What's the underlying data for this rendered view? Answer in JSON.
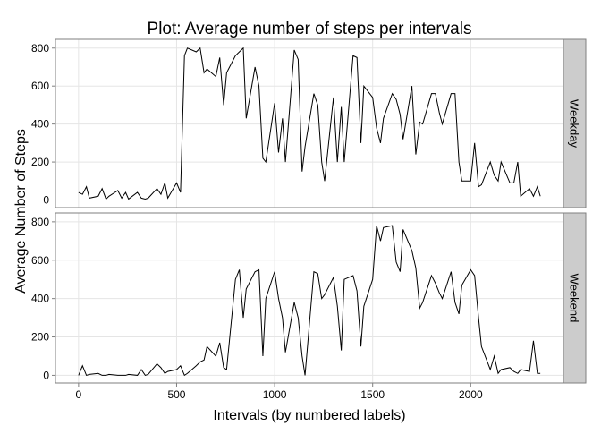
{
  "chart_data": {
    "type": "line",
    "title": "Plot: Average number of steps per intervals",
    "x_label": "Intervals (by numbered labels)",
    "y_label": "Average Number of Steps",
    "xlim": [
      -118,
      2473
    ],
    "xticks": [
      0,
      500,
      1000,
      1500,
      2000
    ],
    "ylim": [
      -40,
      846
    ],
    "yticks": [
      0,
      200,
      400,
      600,
      800
    ],
    "grid": true,
    "color": "#000000",
    "x": [
      0,
      20,
      40,
      55,
      100,
      120,
      140,
      155,
      200,
      220,
      240,
      255,
      300,
      320,
      340,
      355,
      400,
      420,
      440,
      455,
      500,
      520,
      540,
      555,
      600,
      620,
      640,
      655,
      700,
      720,
      740,
      755,
      800,
      820,
      840,
      855,
      900,
      920,
      940,
      955,
      1000,
      1020,
      1040,
      1055,
      1100,
      1120,
      1140,
      1155,
      1200,
      1220,
      1240,
      1255,
      1300,
      1320,
      1340,
      1355,
      1400,
      1420,
      1440,
      1455,
      1500,
      1520,
      1540,
      1555,
      1600,
      1620,
      1640,
      1655,
      1700,
      1720,
      1740,
      1755,
      1800,
      1820,
      1840,
      1855,
      1900,
      1920,
      1940,
      1955,
      2000,
      2020,
      2040,
      2055,
      2100,
      2120,
      2140,
      2155,
      2200,
      2220,
      2240,
      2255,
      2300,
      2320,
      2340,
      2355
    ],
    "panels": [
      {
        "name": "Weekday",
        "values": [
          40,
          30,
          70,
          10,
          20,
          60,
          5,
          20,
          50,
          10,
          40,
          5,
          40,
          10,
          5,
          10,
          60,
          30,
          90,
          10,
          90,
          40,
          760,
          800,
          780,
          800,
          670,
          690,
          650,
          750,
          500,
          670,
          760,
          780,
          800,
          430,
          700,
          600,
          220,
          200,
          510,
          250,
          430,
          200,
          790,
          740,
          150,
          280,
          560,
          500,
          200,
          100,
          540,
          200,
          490,
          200,
          760,
          750,
          300,
          600,
          540,
          380,
          300,
          430,
          560,
          530,
          450,
          320,
          600,
          240,
          410,
          400,
          560,
          560,
          460,
          400,
          560,
          560,
          200,
          100,
          100,
          300,
          70,
          80,
          200,
          130,
          100,
          200,
          90,
          90,
          200,
          20,
          60,
          20,
          70,
          20
        ]
      },
      {
        "name": "Weekend",
        "values": [
          0,
          50,
          0,
          5,
          10,
          0,
          0,
          5,
          0,
          0,
          0,
          5,
          0,
          30,
          0,
          5,
          60,
          40,
          10,
          20,
          30,
          50,
          0,
          10,
          50,
          70,
          80,
          150,
          100,
          170,
          40,
          30,
          500,
          550,
          300,
          450,
          540,
          550,
          100,
          400,
          540,
          400,
          300,
          120,
          380,
          300,
          100,
          0,
          540,
          530,
          400,
          420,
          510,
          360,
          130,
          500,
          520,
          440,
          150,
          360,
          500,
          780,
          700,
          770,
          780,
          590,
          540,
          760,
          650,
          560,
          350,
          380,
          520,
          480,
          430,
          400,
          540,
          380,
          320,
          470,
          550,
          520,
          300,
          150,
          30,
          100,
          10,
          30,
          40,
          20,
          10,
          30,
          20,
          180,
          10,
          10
        ]
      }
    ]
  }
}
